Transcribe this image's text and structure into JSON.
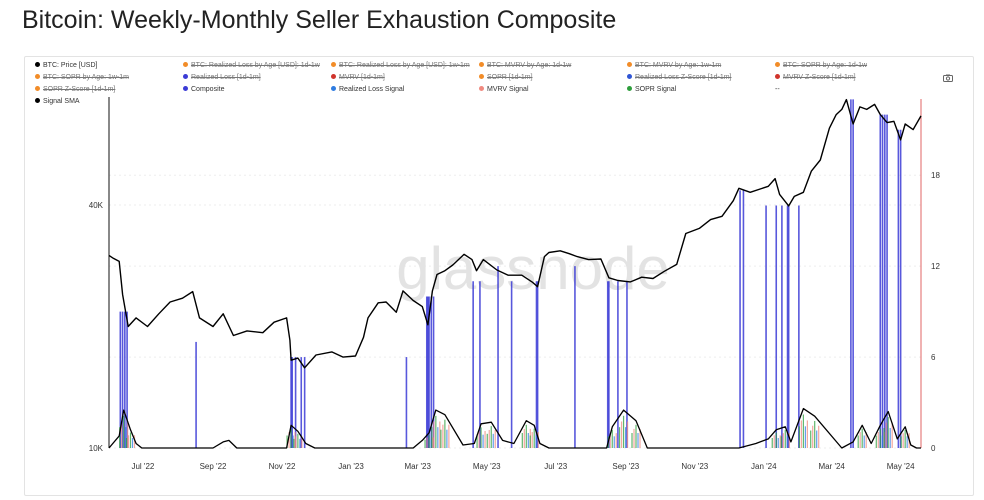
{
  "title": "Bitcoin: Weekly-Monthly Seller Exhaustion Composite",
  "watermark": "glassnode",
  "camera_icon": "camera-icon",
  "legend": [
    {
      "label": "BTC: Price [USD]",
      "color": "#000000",
      "active": true
    },
    {
      "label": "BTC: Realized Loss by Age [USD]: 1d-1w",
      "color": "#f28c28",
      "active": false
    },
    {
      "label": "BTC: Realized Loss by Age [USD]: 1w-1m",
      "color": "#f28c28",
      "active": false
    },
    {
      "label": "BTC: MVRV by Age: 1d-1w",
      "color": "#f28c28",
      "active": false
    },
    {
      "label": "BTC: MVRV by Age: 1w-1m",
      "color": "#f28c28",
      "active": false
    },
    {
      "label": "BTC: SOPR by Age: 1d-1w",
      "color": "#f28c28",
      "active": false
    },
    {
      "label": "BTC: SOPR by Age: 1w-1m",
      "color": "#f28c28",
      "active": false
    },
    {
      "label": "Realized Loss [1d-1m]",
      "color": "#3b3bd6",
      "active": false
    },
    {
      "label": "MVRV [1d-1m]",
      "color": "#d0342c",
      "active": false
    },
    {
      "label": "SOPR [1d-1m]",
      "color": "#f28c28",
      "active": false
    },
    {
      "label": "Realized Loss Z-Score [1d-1m]",
      "color": "#2f55d4",
      "active": false
    },
    {
      "label": "MVRV Z-Score [1d-1m]",
      "color": "#d0342c",
      "active": false
    },
    {
      "label": "SOPR Z-Score [1d-1m]",
      "color": "#f28c28",
      "active": false
    },
    {
      "label": "Composite",
      "color": "#3b3bd6",
      "active": true
    },
    {
      "label": "Realized Loss Signal",
      "color": "#2f7de1",
      "active": true
    },
    {
      "label": "MVRV Signal",
      "color": "#f08a80",
      "active": true
    },
    {
      "label": "SOPR Signal",
      "color": "#2e9e3c",
      "active": true
    },
    {
      "label": "--",
      "color": "",
      "active": true
    },
    {
      "label": "Signal SMA",
      "color": "#000000",
      "active": true
    }
  ],
  "chart_data": {
    "type": "line",
    "title": "Bitcoin: Weekly-Monthly Seller Exhaustion Composite",
    "x_ticks": [
      "Jul '22",
      "Sep '22",
      "Nov '22",
      "Jan '23",
      "Mar '23",
      "May '23",
      "Jul '23",
      "Sep '23",
      "Nov '23",
      "Jan '24",
      "Mar '24",
      "May '24"
    ],
    "y_left_ticks": [
      "10K",
      "40K"
    ],
    "y_left_scale": "log",
    "y_right_ticks": [
      "0",
      "6",
      "12",
      "18"
    ],
    "y_right_range": [
      0,
      22.5
    ],
    "x_range": [
      "2022-06-01",
      "2024-05-19"
    ],
    "grid": true,
    "series": [
      {
        "name": "BTC: Price [USD]",
        "color": "#000000",
        "axis": "left",
        "x": [
          "2022-06-01",
          "2022-06-05",
          "2022-06-10",
          "2022-06-13",
          "2022-06-18",
          "2022-06-25",
          "2022-07-05",
          "2022-07-15",
          "2022-07-25",
          "2022-08-05",
          "2022-08-14",
          "2022-08-20",
          "2022-09-01",
          "2022-09-10",
          "2022-09-19",
          "2022-10-01",
          "2022-10-15",
          "2022-10-25",
          "2022-11-05",
          "2022-11-08",
          "2022-11-09",
          "2022-11-15",
          "2022-11-21",
          "2022-12-01",
          "2022-12-15",
          "2022-12-25",
          "2023-01-05",
          "2023-01-12",
          "2023-01-16",
          "2023-01-25",
          "2023-02-01",
          "2023-02-10",
          "2023-02-16",
          "2023-02-25",
          "2023-03-05",
          "2023-03-10",
          "2023-03-14",
          "2023-03-18",
          "2023-03-25",
          "2023-04-01",
          "2023-04-11",
          "2023-04-18",
          "2023-04-22",
          "2023-04-28",
          "2023-05-10",
          "2023-05-20",
          "2023-06-01",
          "2023-06-10",
          "2023-06-15",
          "2023-06-21",
          "2023-06-25",
          "2023-07-05",
          "2023-07-13",
          "2023-07-20",
          "2023-07-30",
          "2023-08-10",
          "2023-08-17",
          "2023-08-25",
          "2023-09-05",
          "2023-09-15",
          "2023-09-25",
          "2023-10-05",
          "2023-10-16",
          "2023-10-24",
          "2023-11-05",
          "2023-11-15",
          "2023-11-25",
          "2023-12-05",
          "2023-12-10",
          "2023-12-20",
          "2024-01-05",
          "2024-01-11",
          "2024-01-15",
          "2024-01-23",
          "2024-01-28",
          "2024-02-05",
          "2024-02-12",
          "2024-02-20",
          "2024-02-28",
          "2024-03-05",
          "2024-03-10",
          "2024-03-14",
          "2024-03-20",
          "2024-03-26",
          "2024-04-01",
          "2024-04-08",
          "2024-04-13",
          "2024-04-19",
          "2024-04-25",
          "2024-05-01",
          "2024-05-05",
          "2024-05-12",
          "2024-05-19"
        ],
        "y": [
          30000,
          29500,
          29000,
          24000,
          20000,
          21000,
          20000,
          21500,
          23000,
          23500,
          24400,
          21000,
          20000,
          21500,
          19000,
          19500,
          19300,
          20500,
          21000,
          18500,
          16500,
          16700,
          15800,
          17000,
          17300,
          16800,
          16900,
          18800,
          21000,
          22900,
          23000,
          21700,
          24500,
          23200,
          22400,
          20200,
          24500,
          26900,
          27500,
          28400,
          30200,
          29300,
          27500,
          29300,
          27600,
          26800,
          26800,
          25800,
          25100,
          29800,
          30500,
          30800,
          30300,
          29800,
          29300,
          29400,
          26400,
          26000,
          25800,
          26500,
          26300,
          27400,
          28500,
          34000,
          35000,
          36800,
          37500,
          41000,
          44000,
          43000,
          44500,
          46500,
          42500,
          39800,
          42000,
          43000,
          48500,
          51700,
          62000,
          67000,
          69000,
          73000,
          63500,
          70000,
          69000,
          71000,
          67000,
          64000,
          64500,
          58000,
          63500,
          61500,
          66500
        ]
      }
    ],
    "signal_sma": {
      "name": "Signal SMA",
      "color": "#000000",
      "axis": "right",
      "x": [
        "2022-06-01",
        "2022-06-10",
        "2022-06-14",
        "2022-06-20",
        "2022-06-25",
        "2022-06-30",
        "2022-09-01",
        "2022-09-10",
        "2022-09-15",
        "2022-09-22",
        "2022-11-05",
        "2022-11-09",
        "2022-11-15",
        "2022-11-22",
        "2022-11-30",
        "2023-02-25",
        "2023-03-05",
        "2023-03-11",
        "2023-03-17",
        "2023-03-25",
        "2023-04-10",
        "2023-04-20",
        "2023-04-26",
        "2023-05-05",
        "2023-05-15",
        "2023-05-25",
        "2023-06-05",
        "2023-06-12",
        "2023-06-17",
        "2023-06-25",
        "2023-08-15",
        "2023-08-20",
        "2023-08-30",
        "2023-09-10",
        "2023-09-20",
        "2023-12-10",
        "2023-12-25",
        "2024-01-05",
        "2024-01-12",
        "2024-01-20",
        "2024-01-25",
        "2024-02-05",
        "2024-02-15",
        "2024-03-10",
        "2024-03-20",
        "2024-03-28",
        "2024-04-05",
        "2024-04-13",
        "2024-04-20",
        "2024-04-28",
        "2024-05-05",
        "2024-05-10",
        "2024-05-15",
        "2024-05-19"
      ],
      "y": [
        0,
        0.8,
        2.5,
        1.2,
        0.3,
        0,
        0,
        0.4,
        0.5,
        0,
        0,
        1.5,
        1.1,
        0.3,
        0,
        0,
        0.5,
        1.0,
        2.5,
        2.2,
        0.2,
        0.3,
        1.6,
        1.7,
        0.5,
        0.3,
        1.8,
        1.5,
        0.3,
        0,
        0,
        1.4,
        2.5,
        1.8,
        0,
        0,
        0.3,
        0.6,
        1.2,
        1.4,
        0.4,
        2.6,
        2.1,
        0,
        0.4,
        1.5,
        0.3,
        1.5,
        2.4,
        0.6,
        1.4,
        0.2,
        0,
        0
      ]
    },
    "signals": [
      {
        "name": "Composite",
        "color": "#3b3bd6",
        "axis": "right",
        "x": [
          "2022-06-11",
          "2022-06-13",
          "2022-06-15",
          "2022-06-17",
          "2022-08-17",
          "2022-11-09",
          "2022-11-10",
          "2022-11-13",
          "2022-11-18",
          "2022-11-21",
          "2023-02-19",
          "2023-03-09",
          "2023-03-10",
          "2023-03-11",
          "2023-03-13",
          "2023-03-15",
          "2023-04-19",
          "2023-04-25",
          "2023-05-11",
          "2023-05-23",
          "2023-06-14",
          "2023-06-15",
          "2023-07-18",
          "2023-08-16",
          "2023-08-17",
          "2023-08-25",
          "2023-09-02",
          "2023-12-11",
          "2023-12-14",
          "2024-01-03",
          "2024-01-12",
          "2024-01-17",
          "2024-01-22",
          "2024-01-23",
          "2024-02-01",
          "2024-03-18",
          "2024-03-20",
          "2024-04-13",
          "2024-04-15",
          "2024-04-17",
          "2024-04-19",
          "2024-04-29",
          "2024-05-01"
        ],
        "y": [
          9,
          9,
          9,
          9,
          7,
          6,
          6,
          6,
          6,
          6,
          6,
          10,
          10,
          10,
          10,
          10,
          11,
          11,
          12,
          11,
          11,
          11,
          12,
          11,
          11,
          11,
          11,
          17,
          17,
          16,
          16,
          16,
          16,
          16,
          16,
          23,
          23,
          22,
          22,
          22,
          22,
          21,
          21
        ]
      }
    ]
  }
}
